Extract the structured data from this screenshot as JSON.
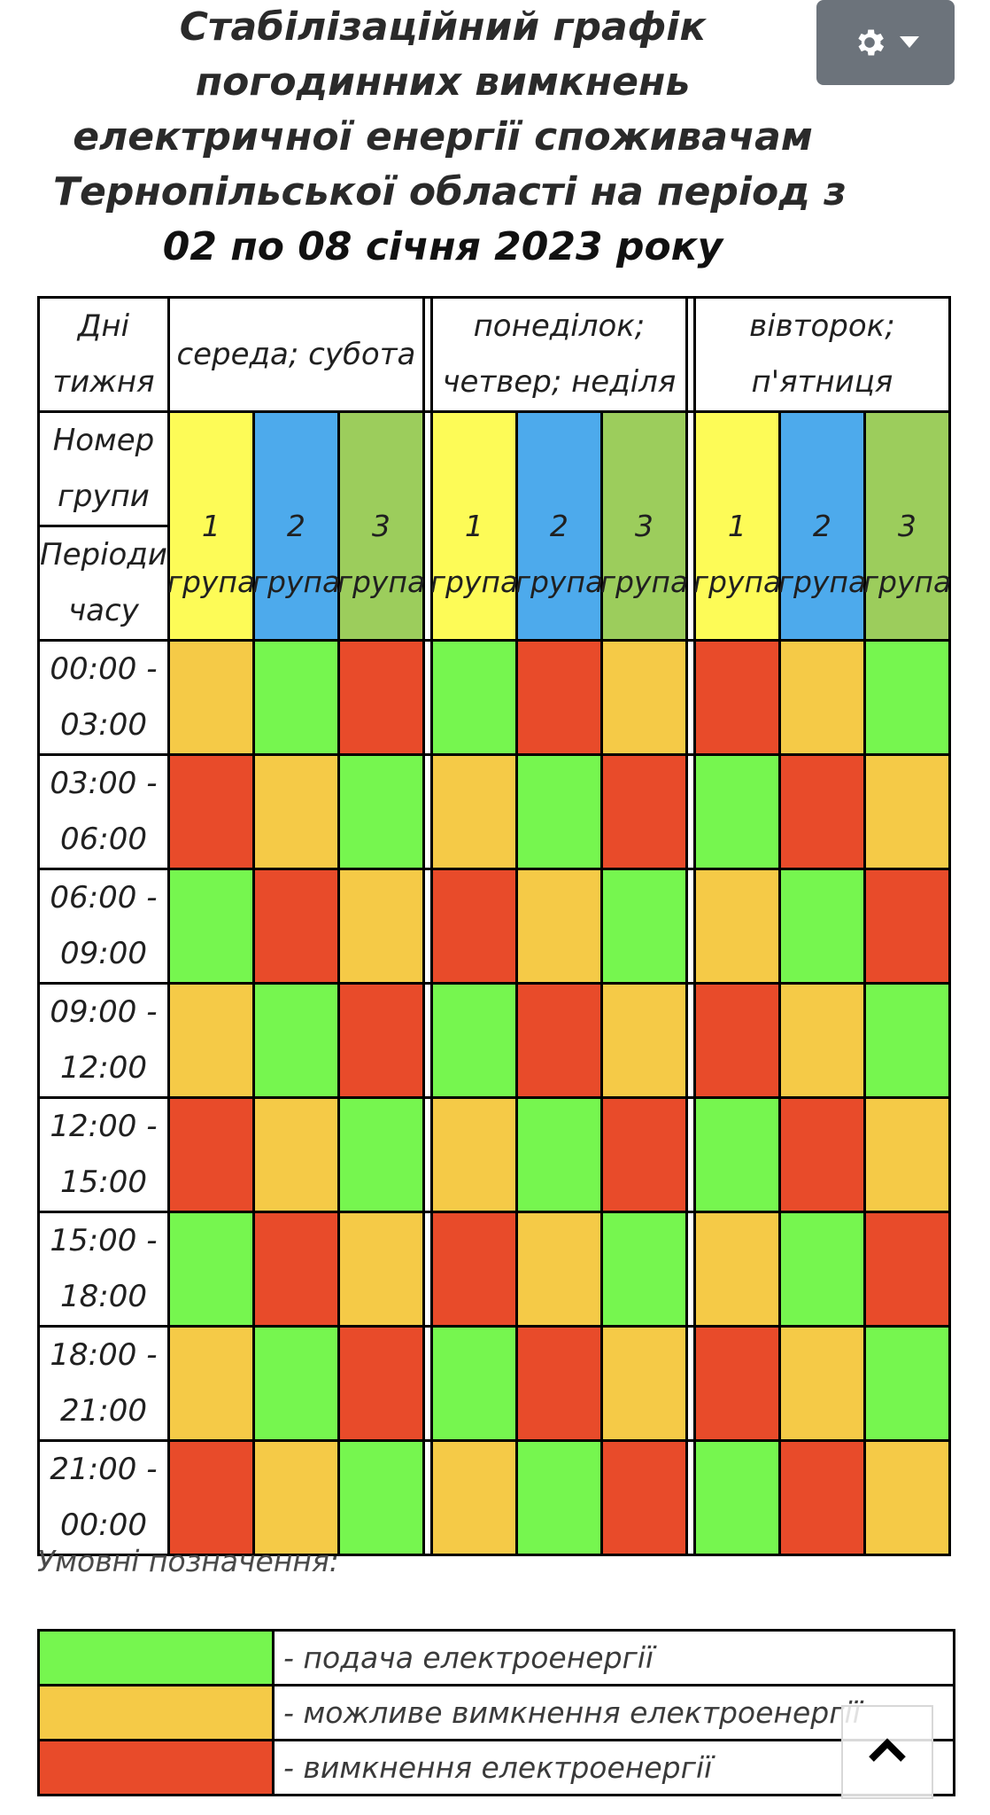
{
  "title": {
    "lines": [
      "Стабілізаційний графік",
      "погодинних вимкнень",
      "електричної енергії споживачам",
      "Тернопільської області на період з"
    ],
    "period": "02 по 08 січня 2023 року"
  },
  "settings_button": {
    "icon": "gear-icon",
    "caret": "caret-down-icon"
  },
  "table": {
    "days_label": [
      "Дні",
      "тижня"
    ],
    "day_groups": [
      {
        "label": [
          "середа; субота"
        ]
      },
      {
        "label": [
          "понеділок;",
          "четвер; неділя"
        ]
      },
      {
        "label": [
          "вівторок;",
          "п'ятниця"
        ]
      }
    ],
    "group_number_label": [
      "Номер",
      "групи"
    ],
    "periods_label": [
      "Періоди",
      "часу"
    ],
    "groups": [
      {
        "num": "1",
        "word": "група",
        "color": "#fdfb57"
      },
      {
        "num": "2",
        "word": "група",
        "color": "#4daaec"
      },
      {
        "num": "3",
        "word": "група",
        "color": "#9ccd5c"
      }
    ],
    "rows": [
      {
        "time": [
          "00:00 -",
          "03:00"
        ],
        "cells": [
          "Y",
          "G",
          "R",
          "G",
          "R",
          "Y",
          "R",
          "Y",
          "G"
        ]
      },
      {
        "time": [
          "03:00 -",
          "06:00"
        ],
        "cells": [
          "R",
          "Y",
          "G",
          "Y",
          "G",
          "R",
          "G",
          "R",
          "Y"
        ]
      },
      {
        "time": [
          "06:00 -",
          "09:00"
        ],
        "cells": [
          "G",
          "R",
          "Y",
          "R",
          "Y",
          "G",
          "Y",
          "G",
          "R"
        ]
      },
      {
        "time": [
          "09:00 -",
          "12:00"
        ],
        "cells": [
          "Y",
          "G",
          "R",
          "G",
          "R",
          "Y",
          "R",
          "Y",
          "G"
        ]
      },
      {
        "time": [
          "12:00 -",
          "15:00"
        ],
        "cells": [
          "R",
          "Y",
          "G",
          "Y",
          "G",
          "R",
          "G",
          "R",
          "Y"
        ]
      },
      {
        "time": [
          "15:00 -",
          "18:00"
        ],
        "cells": [
          "G",
          "R",
          "Y",
          "R",
          "Y",
          "G",
          "Y",
          "G",
          "R"
        ]
      },
      {
        "time": [
          "18:00 -",
          "21:00"
        ],
        "cells": [
          "Y",
          "G",
          "R",
          "G",
          "R",
          "Y",
          "R",
          "Y",
          "G"
        ]
      },
      {
        "time": [
          "21:00 -",
          "00:00"
        ],
        "cells": [
          "R",
          "Y",
          "G",
          "Y",
          "G",
          "R",
          "G",
          "R",
          "Y"
        ]
      }
    ]
  },
  "status_colors": {
    "G": "#76f64f",
    "Y": "#f5ca47",
    "R": "#e84b2a"
  },
  "legend": {
    "title": "Умовні позначення:",
    "items": [
      {
        "key": "G",
        "text": "- подача електроенергії"
      },
      {
        "key": "Y",
        "text": "- можливе вимкнення електроенергії"
      },
      {
        "key": "R",
        "text": "- вимкнення електроенергії"
      }
    ]
  },
  "scroll_top_button": {
    "icon": "chevron-up-icon"
  }
}
